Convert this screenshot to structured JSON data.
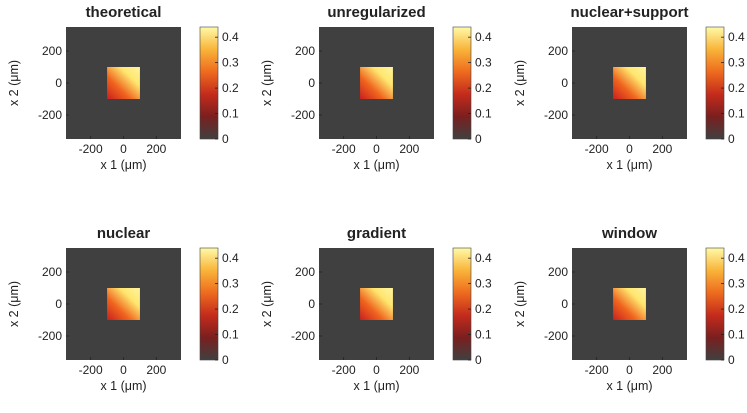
{
  "chart_data": [
    {
      "type": "heatmap",
      "title": "theoretical",
      "xlabel": "x 1 (μm)",
      "ylabel": "x 2 (μm)",
      "xticks": [
        -200,
        0,
        200
      ],
      "yticks": [
        -200,
        0,
        200
      ],
      "xlim": [
        -350,
        350
      ],
      "ylim": [
        -350,
        350
      ],
      "colorbar": {
        "ticks": [
          0,
          0.1,
          0.2,
          0.3,
          0.4
        ],
        "tick_labels": [
          "0",
          "0.1",
          "0.2",
          "0.3",
          "0.4"
        ],
        "range": [
          0,
          0.44
        ]
      },
      "colormap": "hot",
      "square_extent": [
        -100,
        100
      ],
      "peak_value": 0.43,
      "background_value": 0.0
    },
    {
      "type": "heatmap",
      "title": "unregularized",
      "xlabel": "x 1 (μm)",
      "ylabel": "x 2 (μm)",
      "xticks": [
        -200,
        0,
        200
      ],
      "yticks": [
        -200,
        0,
        200
      ],
      "xlim": [
        -350,
        350
      ],
      "ylim": [
        -350,
        350
      ],
      "colorbar": {
        "ticks": [
          0,
          0.1,
          0.2,
          0.3,
          0.4
        ],
        "tick_labels": [
          "0",
          "0.1",
          "0.2",
          "0.3",
          "0.4"
        ],
        "range": [
          0,
          0.44
        ]
      },
      "colormap": "hot",
      "square_extent": [
        -100,
        100
      ],
      "peak_value": 0.43,
      "background_value": 0.0
    },
    {
      "type": "heatmap",
      "title": "nuclear+support",
      "xlabel": "x 1 (μm)",
      "ylabel": "x 2 (μm)",
      "xticks": [
        -200,
        0,
        200
      ],
      "yticks": [
        -200,
        0,
        200
      ],
      "xlim": [
        -350,
        350
      ],
      "ylim": [
        -350,
        350
      ],
      "colorbar": {
        "ticks": [
          0,
          0.1,
          0.2,
          0.3,
          0.4
        ],
        "tick_labels": [
          "0",
          "0.1",
          "0.2",
          "0.3",
          "0.4"
        ],
        "range": [
          0,
          0.44
        ]
      },
      "colormap": "hot",
      "square_extent": [
        -100,
        100
      ],
      "peak_value": 0.43,
      "background_value": 0.0
    },
    {
      "type": "heatmap",
      "title": "nuclear",
      "xlabel": "x 1 (μm)",
      "ylabel": "x 2 (μm)",
      "xticks": [
        -200,
        0,
        200
      ],
      "yticks": [
        -200,
        0,
        200
      ],
      "xlim": [
        -350,
        350
      ],
      "ylim": [
        -350,
        350
      ],
      "colorbar": {
        "ticks": [
          0,
          0.1,
          0.2,
          0.3,
          0.4
        ],
        "tick_labels": [
          "0",
          "0.1",
          "0.2",
          "0.3",
          "0.4"
        ],
        "range": [
          0,
          0.44
        ]
      },
      "colormap": "hot",
      "square_extent": [
        -100,
        100
      ],
      "peak_value": 0.43,
      "background_value": 0.0
    },
    {
      "type": "heatmap",
      "title": "gradient",
      "xlabel": "x 1 (μm)",
      "ylabel": "x 2 (μm)",
      "xticks": [
        -200,
        0,
        200
      ],
      "yticks": [
        -200,
        0,
        200
      ],
      "xlim": [
        -350,
        350
      ],
      "ylim": [
        -350,
        350
      ],
      "colorbar": {
        "ticks": [
          0,
          0.1,
          0.2,
          0.3,
          0.4
        ],
        "tick_labels": [
          "0",
          "0.1",
          "0.2",
          "0.3",
          "0.4"
        ],
        "range": [
          0,
          0.44
        ]
      },
      "colormap": "hot",
      "square_extent": [
        -100,
        100
      ],
      "peak_value": 0.43,
      "background_value": 0.0
    },
    {
      "type": "heatmap",
      "title": "window",
      "xlabel": "x 1 (μm)",
      "ylabel": "x 2 (μm)",
      "xticks": [
        -200,
        0,
        200
      ],
      "yticks": [
        -200,
        0,
        200
      ],
      "xlim": [
        -350,
        350
      ],
      "ylim": [
        -350,
        350
      ],
      "colorbar": {
        "ticks": [
          0,
          0.1,
          0.2,
          0.3,
          0.4
        ],
        "tick_labels": [
          "0",
          "0.1",
          "0.2",
          "0.3",
          "0.4"
        ],
        "range": [
          0,
          0.44
        ]
      },
      "colormap": "hot",
      "square_extent": [
        -100,
        100
      ],
      "peak_value": 0.43,
      "background_value": 0.0
    }
  ],
  "colors": {
    "background": "#404040",
    "square_dark": "#c8201e",
    "square_mid": "#f0641e",
    "square_bright": "#ffe66e",
    "colormap_stops": [
      "#404040",
      "#7a1f1f",
      "#c42b1c",
      "#ee6b1e",
      "#f9b43a",
      "#fffaa8"
    ]
  }
}
